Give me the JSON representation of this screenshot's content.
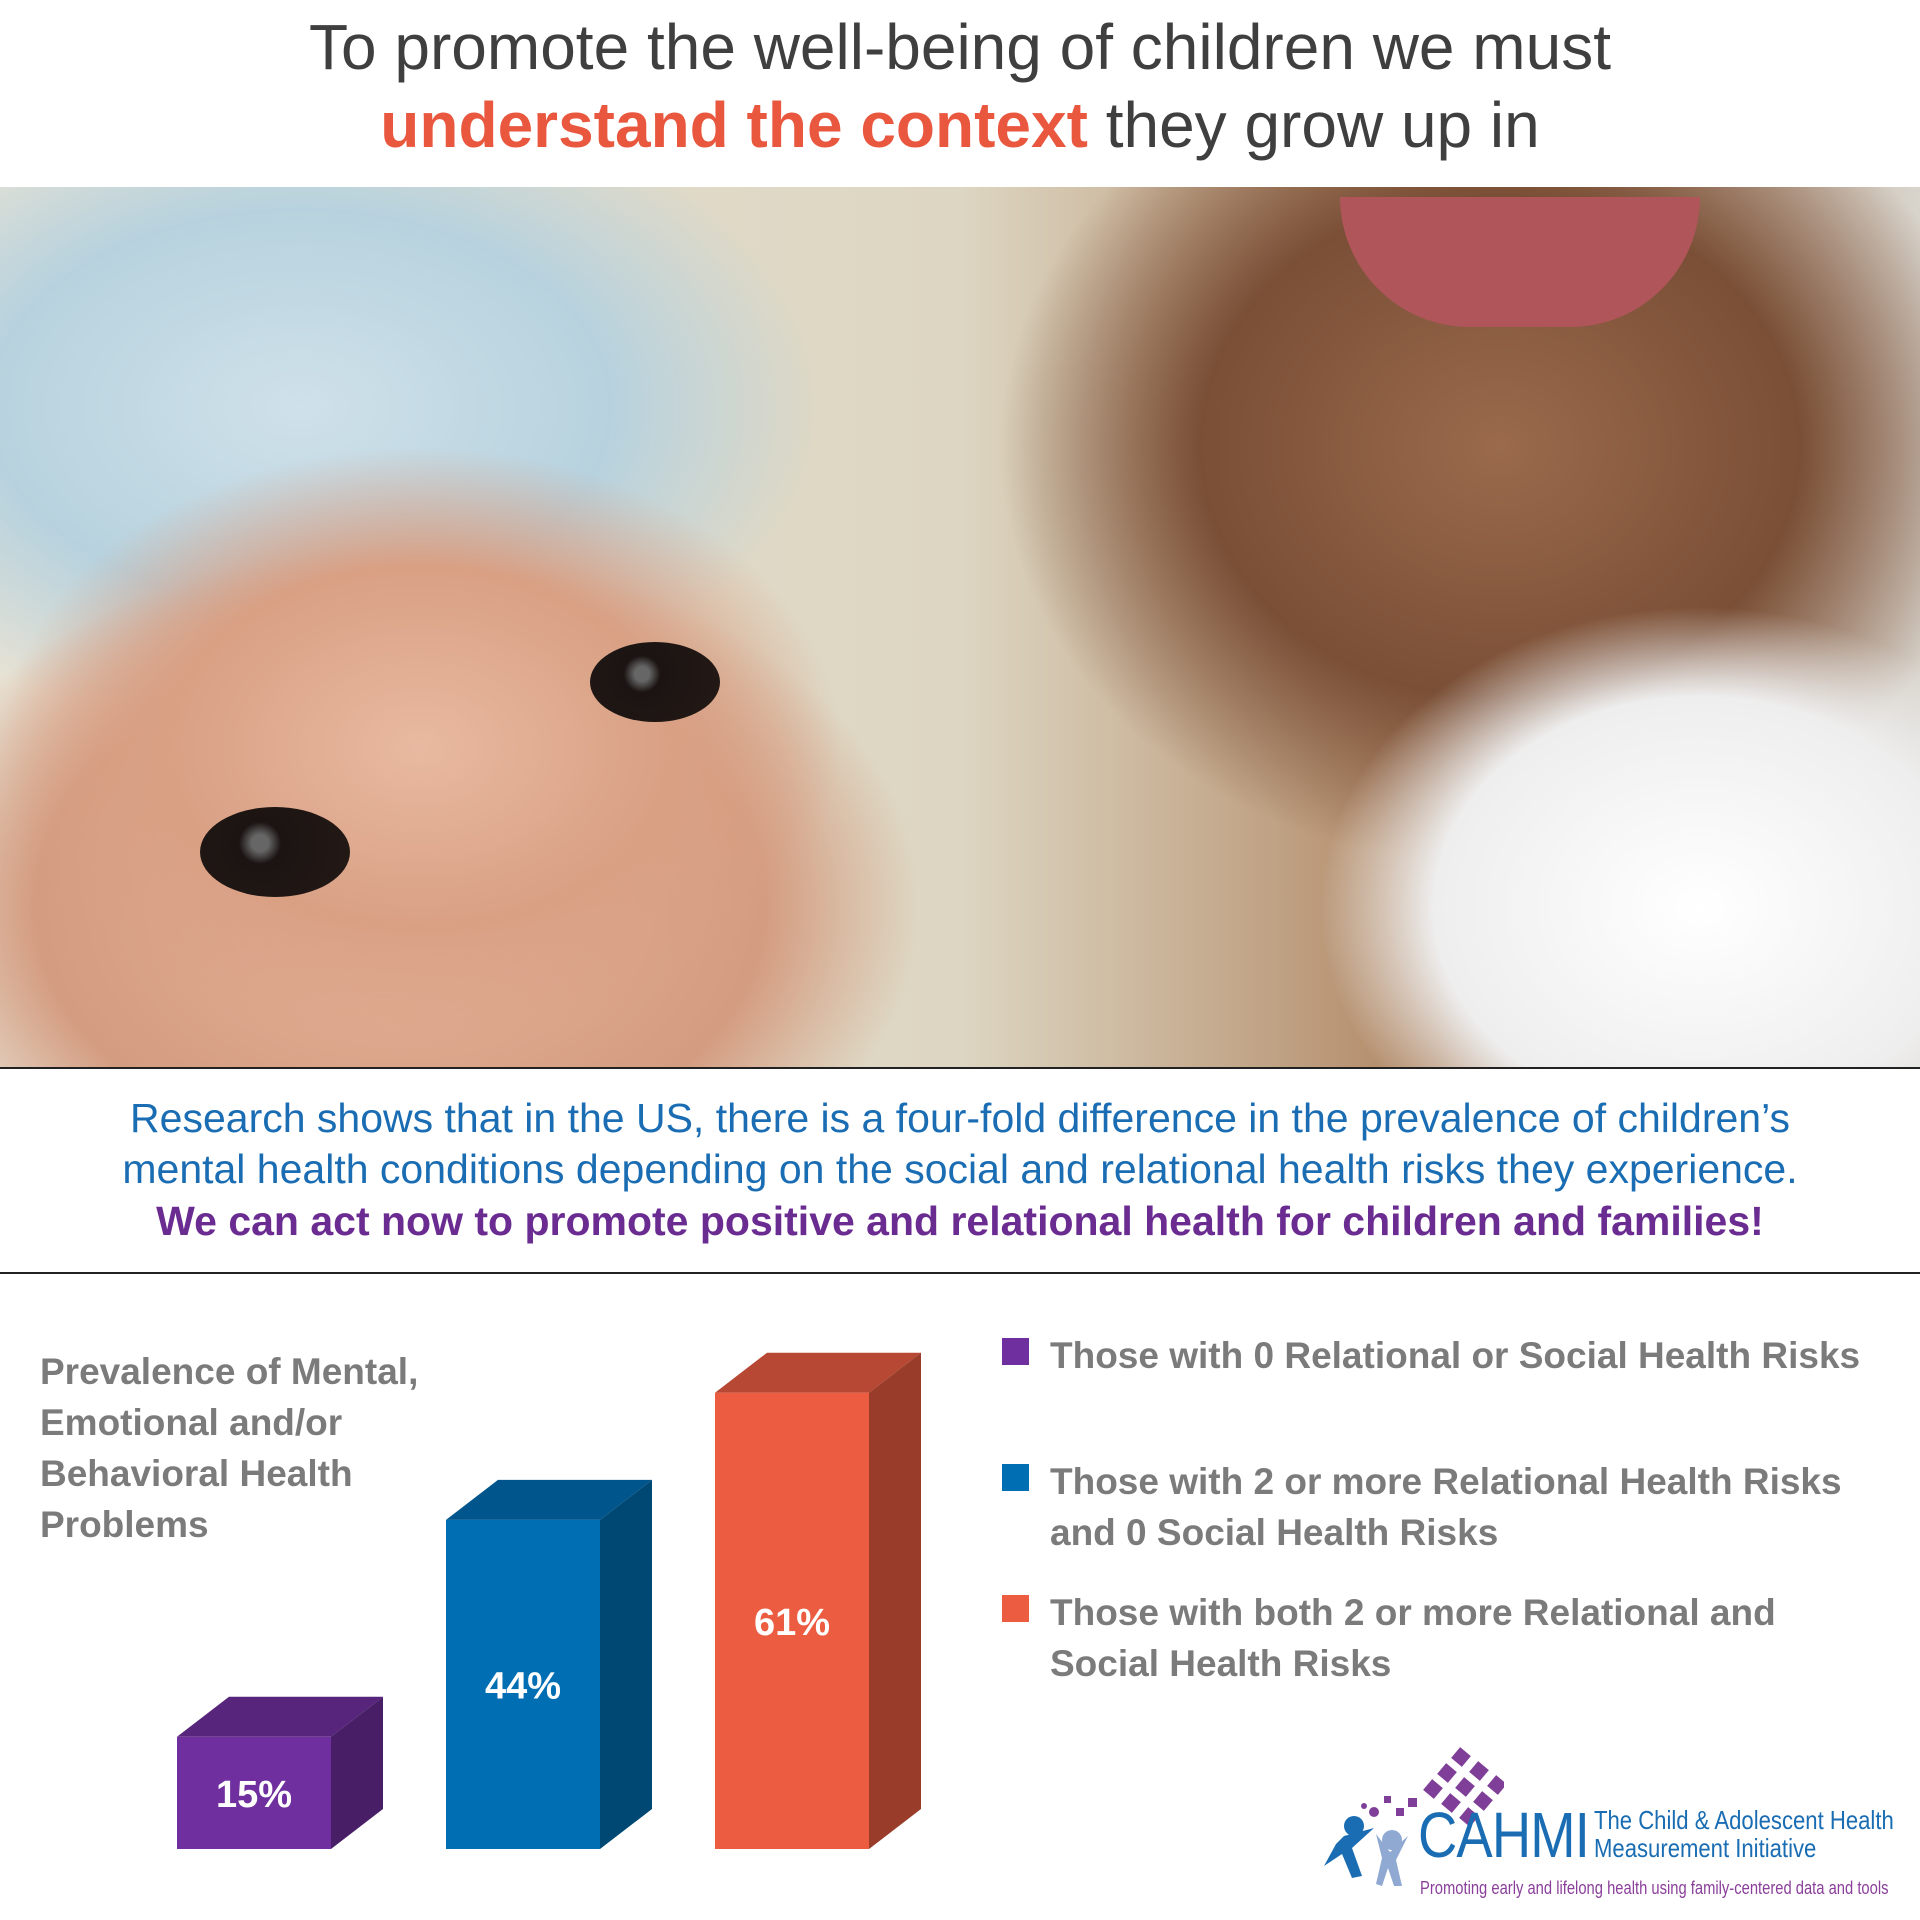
{
  "header": {
    "line1": "To promote the well-being of children we must",
    "line2_accent": "understand the context",
    "line2_rest": " they grow up in"
  },
  "body": {
    "line1": "Research shows that in the US, there is a four-fold difference in the prevalence of children’s",
    "line2": "mental health conditions depending on the social and relational health risks they experience.",
    "line3": "We can act now to promote positive and relational health for children and families!"
  },
  "chart_data": {
    "type": "bar",
    "title": "Prevalence of Mental, Emotional and/or Behavioral Health Problems",
    "categories": [
      "Those with 0 Relational or Social Health Risks",
      "Those with 2 or more Relational Health Risks and 0 Social Health Risks",
      "Those with both 2 or more Relational and Social Health Risks"
    ],
    "values": [
      15,
      44,
      61
    ],
    "labels": [
      "15%",
      "44%",
      "61%"
    ],
    "colors": [
      "#6f2f9e",
      "#006eb3",
      "#eb5c41"
    ],
    "style": "3d-columns",
    "legend_position": "right",
    "grid": false
  },
  "legend": [
    {
      "label": "Those with 0 Relational or Social Health Risks",
      "color": "#6f2f9e"
    },
    {
      "label": "Those with 2 or more Relational Health Risks and 0 Social Health Risks",
      "color": "#006eb3"
    },
    {
      "label": "Those with both 2 or more Relational and Social Health Risks",
      "color": "#eb5c41"
    }
  ],
  "logo": {
    "name": "CAHMI",
    "org_line1": "The Child & Adolescent Health",
    "org_line2": "Measurement Initiative",
    "tagline": "Promoting early and lifelong health using family-centered data and tools"
  }
}
